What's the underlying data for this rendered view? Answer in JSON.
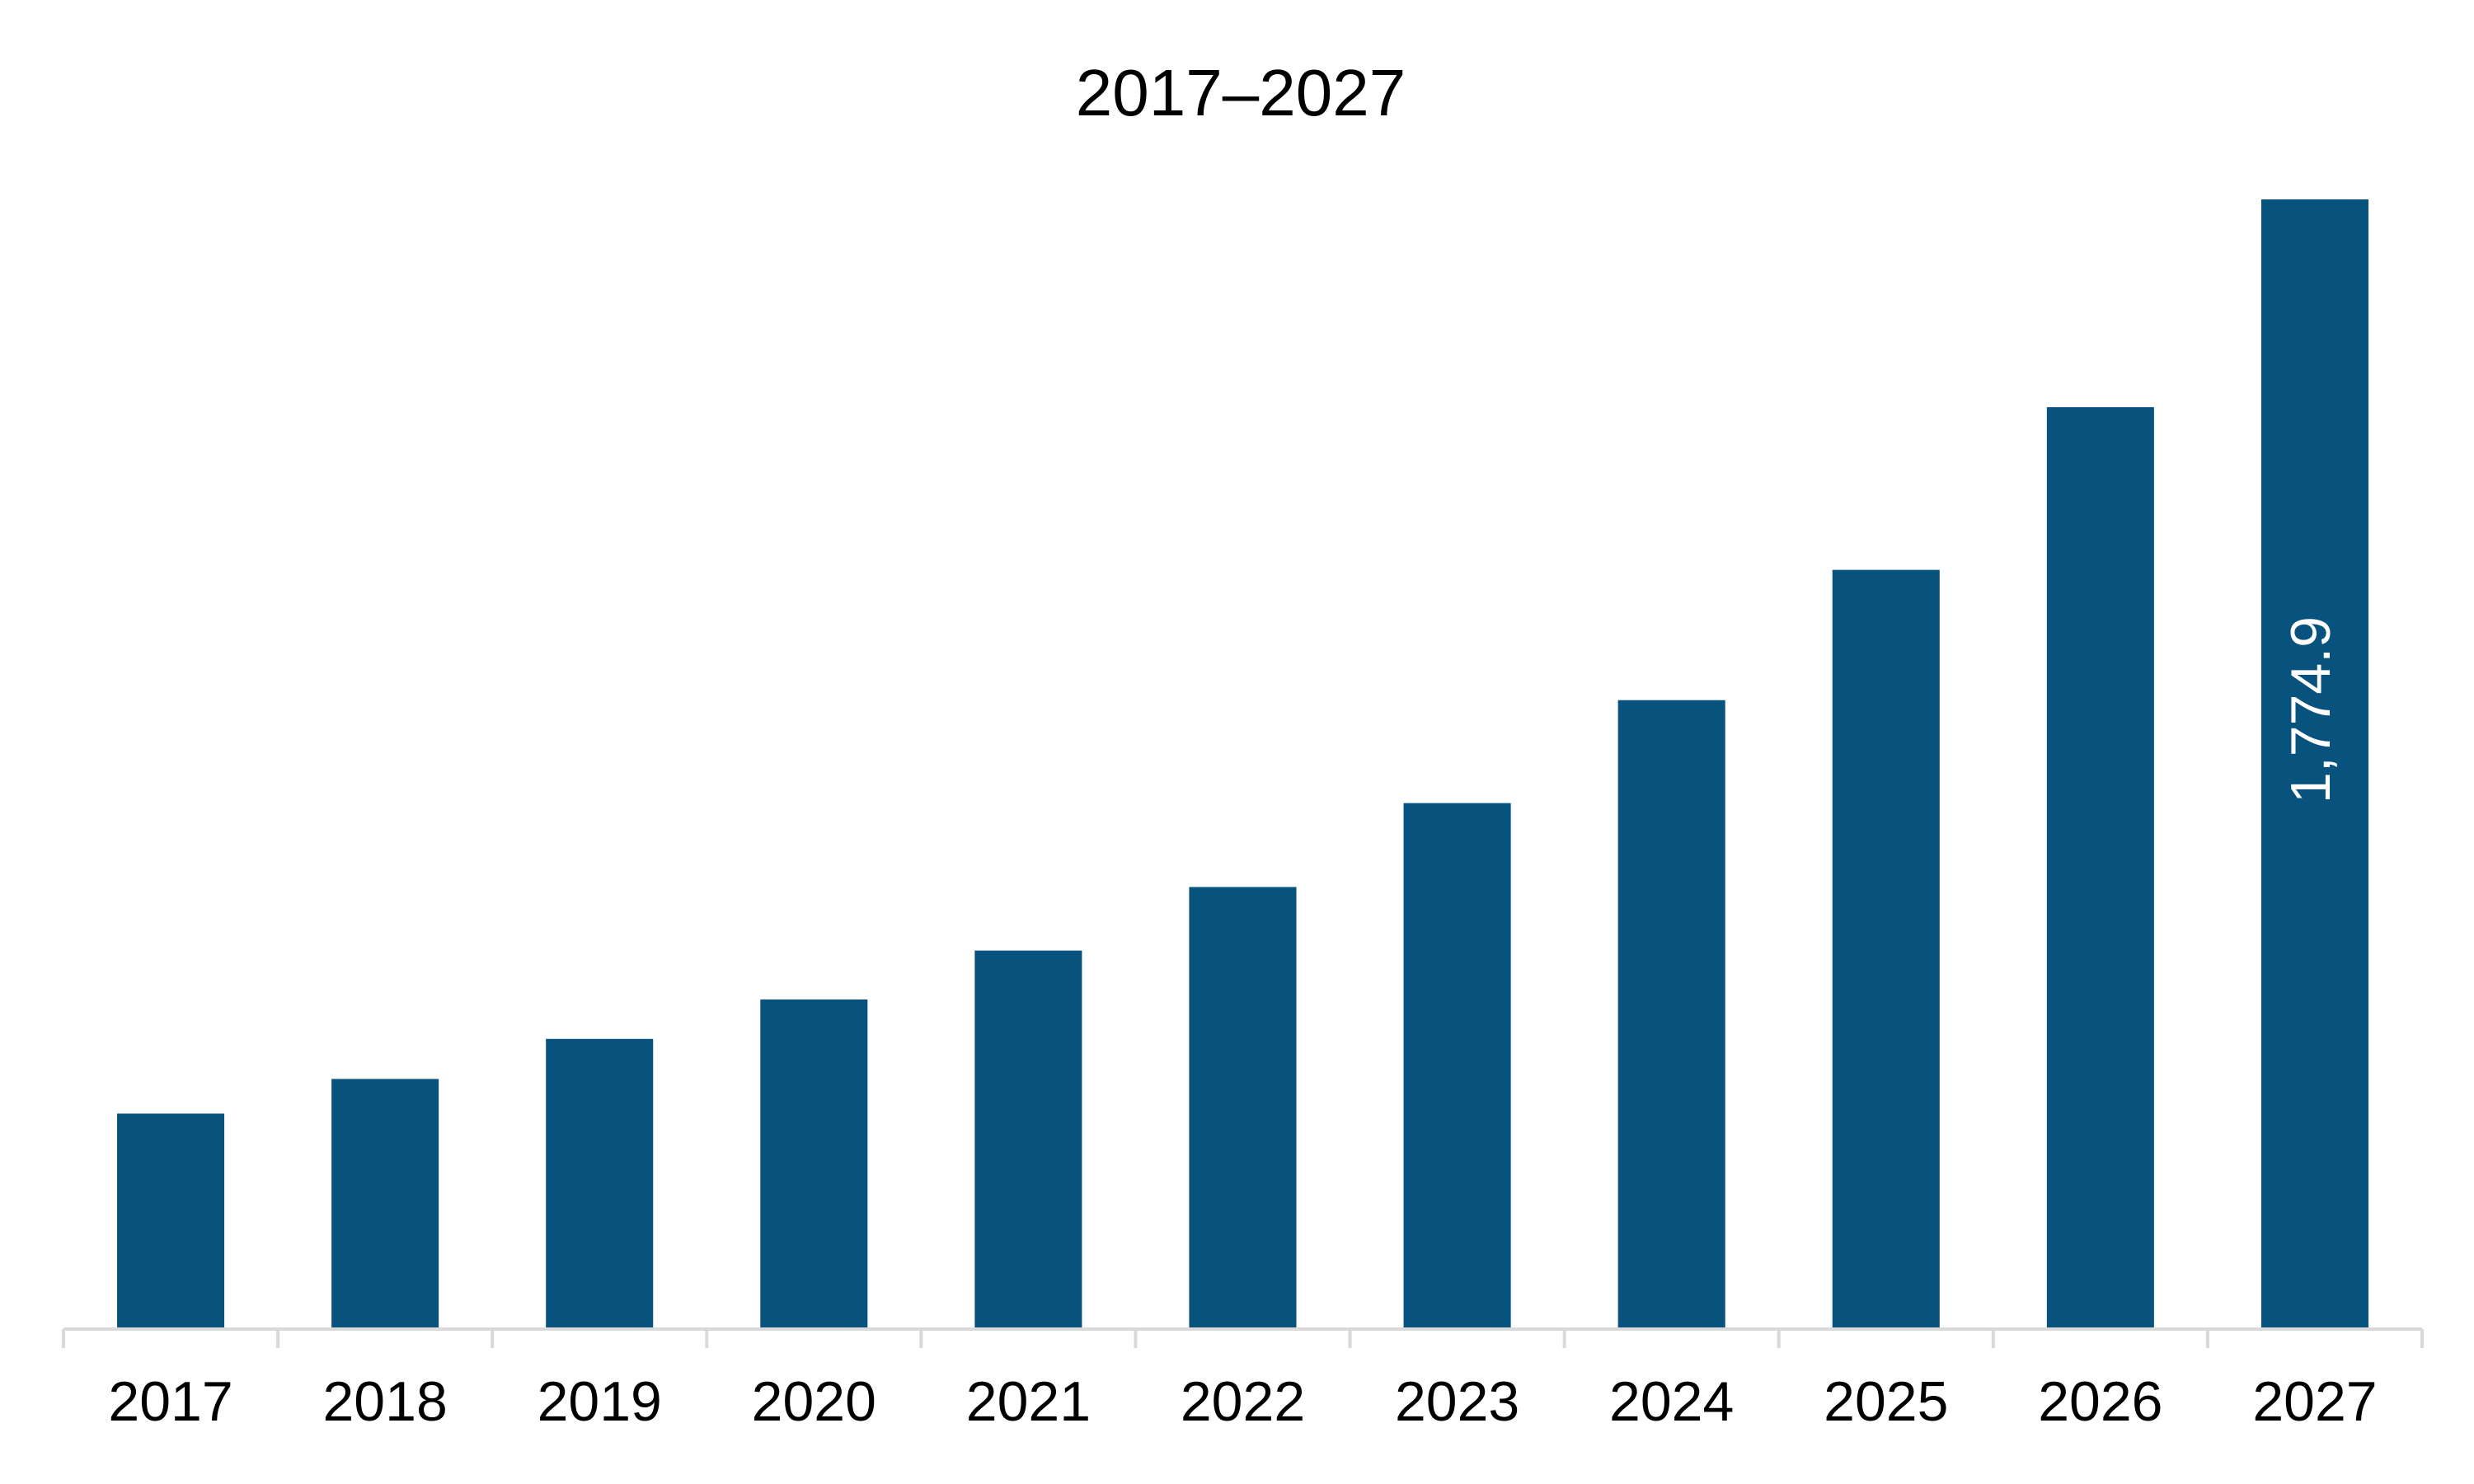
{
  "chart_data": {
    "type": "bar",
    "title": "2017–2027",
    "categories": [
      "2017",
      "2018",
      "2019",
      "2020",
      "2021",
      "2022",
      "2023",
      "2024",
      "2025",
      "2026",
      "2027"
    ],
    "values": [
      336.5,
      391,
      454,
      516,
      593,
      693,
      825,
      987,
      1192,
      1448,
      1774.9
    ],
    "value_labels": [
      null,
      null,
      null,
      null,
      null,
      null,
      null,
      null,
      null,
      null,
      "1,774.9"
    ],
    "color": "#08527e"
  }
}
